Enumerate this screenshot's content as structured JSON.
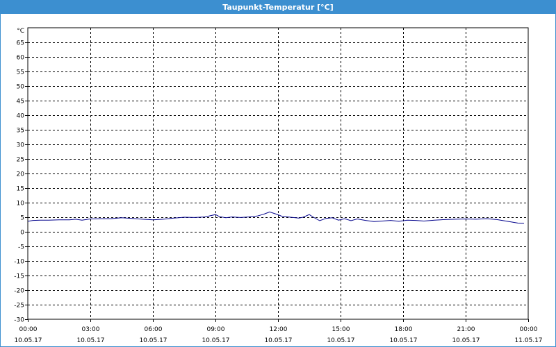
{
  "window": {
    "title": "Taupunkt-Temperatur [°C]"
  },
  "colors": {
    "titlebar": "#3c8fd0",
    "series": "#00008b",
    "grid": "#000000"
  },
  "chart_data": {
    "type": "line",
    "title": "Taupunkt-Temperatur [°C]",
    "ylabel": "°C",
    "xlabel": "",
    "ylim": [
      -30,
      70
    ],
    "yticks": [
      65,
      60,
      55,
      50,
      45,
      40,
      35,
      30,
      25,
      20,
      15,
      10,
      5,
      0,
      -5,
      -10,
      -15,
      -20,
      -25,
      -30
    ],
    "xlim_hours": [
      0,
      24
    ],
    "xticks": [
      {
        "hour": 0,
        "time": "00:00",
        "date": "10.05.17"
      },
      {
        "hour": 3,
        "time": "03:00",
        "date": "10.05.17"
      },
      {
        "hour": 6,
        "time": "06:00",
        "date": "10.05.17"
      },
      {
        "hour": 9,
        "time": "09:00",
        "date": "10.05.17"
      },
      {
        "hour": 12,
        "time": "12:00",
        "date": "10.05.17"
      },
      {
        "hour": 15,
        "time": "15:00",
        "date": "10.05.17"
      },
      {
        "hour": 18,
        "time": "18:00",
        "date": "10.05.17"
      },
      {
        "hour": 21,
        "time": "21:00",
        "date": "10.05.17"
      },
      {
        "hour": 24,
        "time": "00:00",
        "date": "11.05.17"
      }
    ],
    "grid": true,
    "series": [
      {
        "points": [
          [
            0.0,
            3.6
          ],
          [
            0.25,
            3.9
          ],
          [
            0.6,
            4.0
          ],
          [
            1.0,
            4.0
          ],
          [
            1.5,
            4.1
          ],
          [
            2.0,
            4.1
          ],
          [
            2.3,
            4.3
          ],
          [
            2.6,
            4.0
          ],
          [
            3.0,
            4.4
          ],
          [
            3.5,
            4.5
          ],
          [
            4.0,
            4.5
          ],
          [
            4.5,
            4.8
          ],
          [
            5.0,
            4.6
          ],
          [
            5.5,
            4.3
          ],
          [
            6.0,
            4.1
          ],
          [
            6.5,
            4.3
          ],
          [
            7.0,
            4.7
          ],
          [
            7.5,
            5.0
          ],
          [
            8.0,
            4.9
          ],
          [
            8.5,
            5.1
          ],
          [
            8.8,
            5.6
          ],
          [
            9.0,
            5.9
          ],
          [
            9.2,
            5.2
          ],
          [
            9.5,
            4.8
          ],
          [
            9.8,
            5.1
          ],
          [
            10.2,
            4.9
          ],
          [
            10.6,
            5.1
          ],
          [
            11.0,
            5.4
          ],
          [
            11.3,
            6.0
          ],
          [
            11.6,
            6.8
          ],
          [
            11.9,
            6.1
          ],
          [
            12.2,
            5.3
          ],
          [
            12.6,
            5.0
          ],
          [
            13.0,
            4.7
          ],
          [
            13.2,
            5.0
          ],
          [
            13.5,
            5.9
          ],
          [
            13.7,
            5.0
          ],
          [
            14.0,
            3.8
          ],
          [
            14.3,
            4.6
          ],
          [
            14.6,
            4.8
          ],
          [
            14.9,
            4.0
          ],
          [
            15.2,
            4.5
          ],
          [
            15.5,
            3.8
          ],
          [
            15.8,
            4.4
          ],
          [
            16.2,
            3.9
          ],
          [
            16.6,
            3.5
          ],
          [
            17.0,
            3.7
          ],
          [
            17.4,
            3.9
          ],
          [
            17.8,
            3.6
          ],
          [
            18.2,
            4.0
          ],
          [
            18.6,
            3.9
          ],
          [
            19.0,
            3.7
          ],
          [
            19.5,
            4.0
          ],
          [
            20.0,
            4.2
          ],
          [
            20.5,
            4.3
          ],
          [
            21.0,
            4.4
          ],
          [
            21.5,
            4.3
          ],
          [
            22.0,
            4.5
          ],
          [
            22.5,
            4.2
          ],
          [
            23.0,
            3.6
          ],
          [
            23.5,
            3.0
          ],
          [
            23.8,
            2.9
          ]
        ]
      }
    ]
  }
}
